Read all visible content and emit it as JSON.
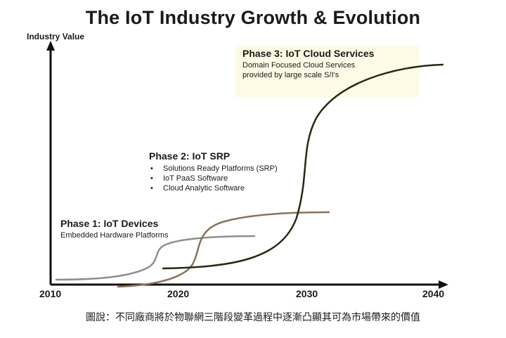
{
  "title": "The IoT Industry Growth & Evolution",
  "y_axis_label": "Industry Value",
  "x_ticks": [
    "2010",
    "2020",
    "2030",
    "2040"
  ],
  "phases": [
    {
      "title": "Phase 1: IoT Devices",
      "description": "Embedded Hardware Platforms",
      "curve_color": "#8e8e8e"
    },
    {
      "title": "Phase 2: IoT SRP",
      "items": [
        "Solutions Ready Platforms (SRP)",
        "IoT PaaS Software",
        "Cloud Analytic Software"
      ],
      "curve_color": "#8b7255"
    },
    {
      "title": "Phase 3: IoT Cloud Services",
      "description_lines": [
        "Domain Focused Cloud Services",
        "provided by large scale S/I's"
      ],
      "curve_color": "#252a12",
      "box_color": "#fdfbe6"
    }
  ],
  "caption": "圖說：不同廠商將於物聯網三階段變革過程中逐漸凸顯其可為市場帶來的價值"
}
